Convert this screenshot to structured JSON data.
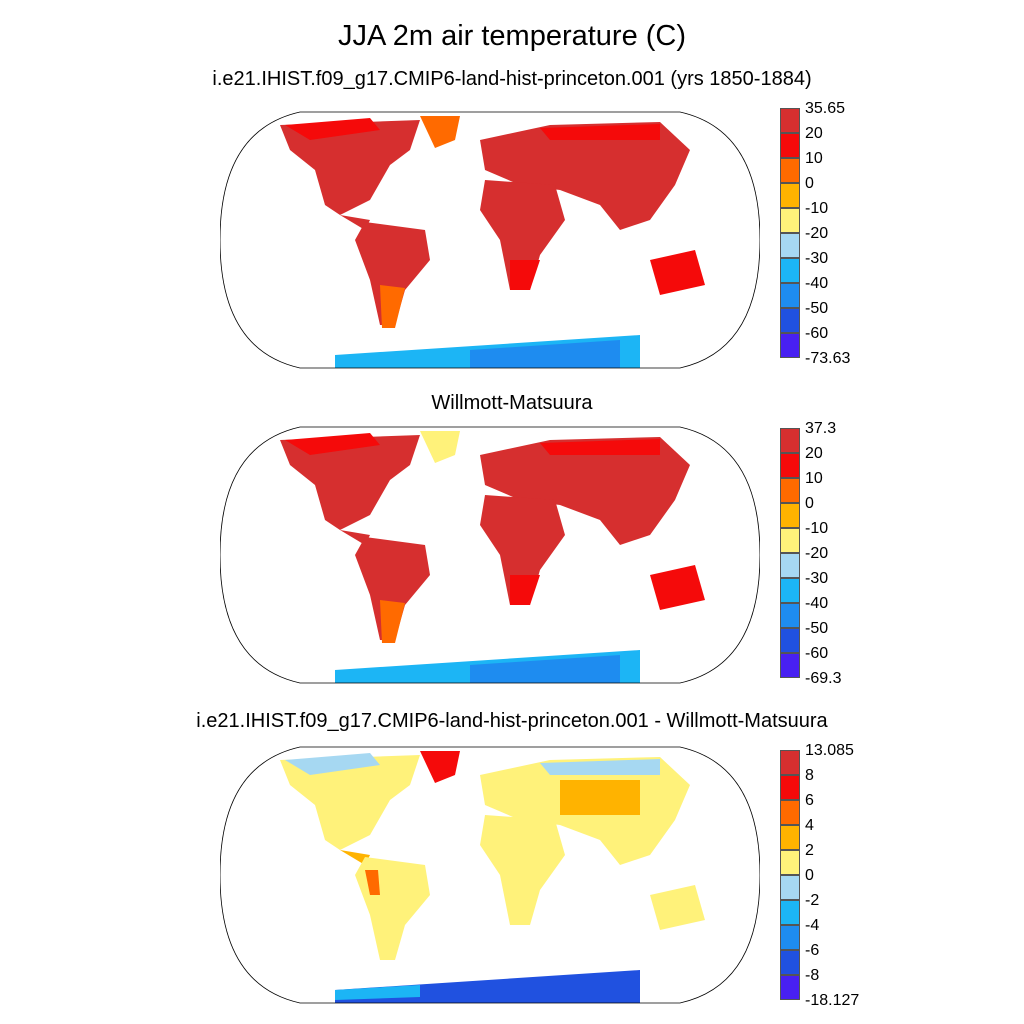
{
  "figure": {
    "title": "JJA 2m air temperature (C)"
  },
  "panels": [
    {
      "title": "i.e21.IHIST.f09_g17.CMIP6-land-hist-princeton.001 (yrs 1850-1884)",
      "colorbar": {
        "labels": [
          "35.65",
          "20",
          "10",
          "0",
          "-10",
          "-20",
          "-30",
          "-40",
          "-50",
          "-60",
          "-73.63"
        ],
        "colors": [
          "#d62f2f",
          "#f50a0a",
          "#ff6a00",
          "#ffb300",
          "#fff27a",
          "#a6d8f2",
          "#1cb5f5",
          "#1e8cf0",
          "#2051e0",
          "#4820f2"
        ]
      }
    },
    {
      "title": "Willmott-Matsuura",
      "colorbar": {
        "labels": [
          "37.3",
          "20",
          "10",
          "0",
          "-10",
          "-20",
          "-30",
          "-40",
          "-50",
          "-60",
          "-69.3"
        ],
        "colors": [
          "#d62f2f",
          "#f50a0a",
          "#ff6a00",
          "#ffb300",
          "#fff27a",
          "#a6d8f2",
          "#1cb5f5",
          "#1e8cf0",
          "#2051e0",
          "#4820f2"
        ]
      }
    },
    {
      "title": "i.e21.IHIST.f09_g17.CMIP6-land-hist-princeton.001 - Willmott-Matsuura",
      "colorbar": {
        "labels": [
          "13.085",
          "8",
          "6",
          "4",
          "2",
          "0",
          "-2",
          "-4",
          "-6",
          "-8",
          "-18.127"
        ],
        "colors": [
          "#d62f2f",
          "#f50a0a",
          "#ff6a00",
          "#ffb300",
          "#fff27a",
          "#a6d8f2",
          "#1cb5f5",
          "#1e8cf0",
          "#2051e0",
          "#4820f2"
        ]
      }
    }
  ]
}
